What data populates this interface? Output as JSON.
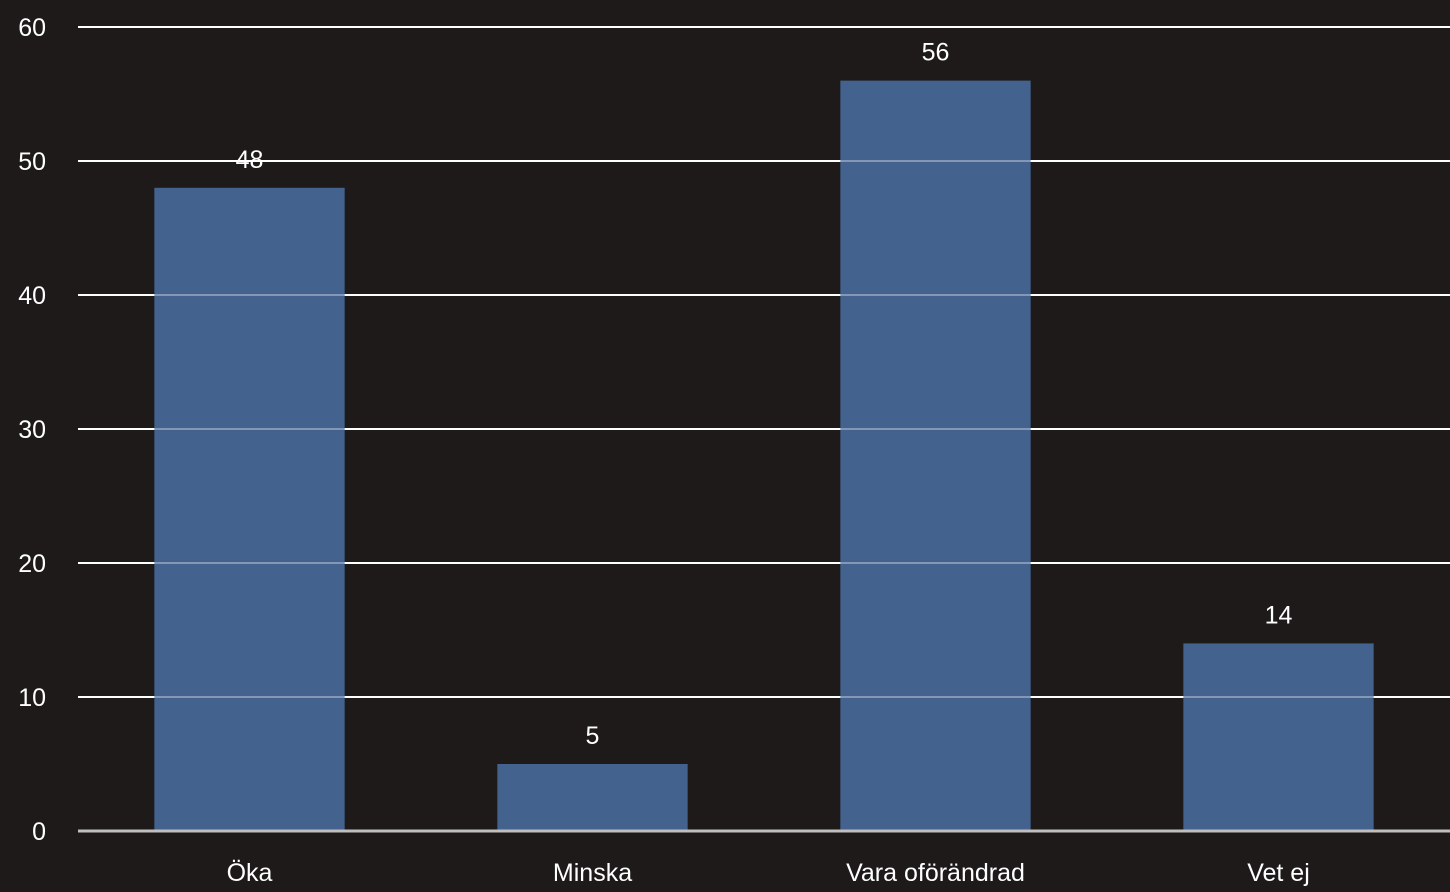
{
  "chart_data": {
    "type": "bar",
    "title": "",
    "xlabel": "",
    "ylabel": "",
    "categories": [
      "Öka",
      "Minska",
      "Vara oförändrad",
      "Vet ej"
    ],
    "values": [
      48,
      5,
      56,
      14
    ],
    "data_labels": [
      "48",
      "5",
      "56",
      "14"
    ],
    "ylim": [
      0,
      60
    ],
    "yticks": [
      0,
      10,
      20,
      30,
      40,
      50,
      60
    ],
    "ytick_labels": [
      "0",
      "10",
      "20",
      "30",
      "40",
      "50",
      "60"
    ],
    "grid": true,
    "legend": "none",
    "colors": {
      "background": "#1d1a19",
      "bar": "#43628e",
      "gridline": "#ffffff",
      "axis": "#bfbfbf",
      "text": "#ffffff"
    }
  }
}
